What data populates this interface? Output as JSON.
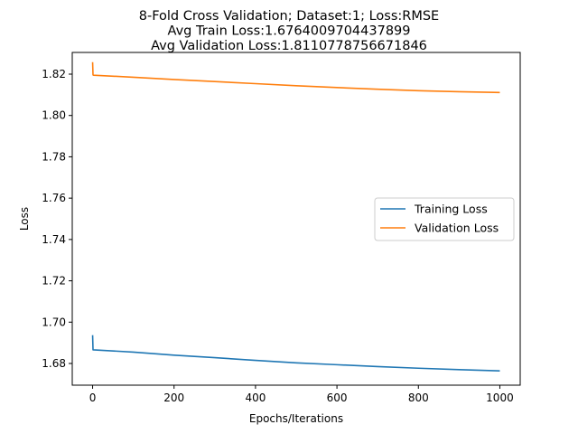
{
  "chart_data": {
    "type": "line",
    "title_lines": [
      "8-Fold Cross Validation; Dataset:1; Loss:RMSE",
      "Avg Train Loss:1.6764009704437899",
      "Avg Validation Loss:1.8110778756671846"
    ],
    "xlabel": "Epochs/Iterations",
    "ylabel": "Loss",
    "xlim": [
      -50,
      1050
    ],
    "ylim": [
      1.6695,
      1.8305
    ],
    "x_ticks": [
      0,
      200,
      400,
      600,
      800,
      1000
    ],
    "y_ticks": [
      1.68,
      1.7,
      1.72,
      1.74,
      1.76,
      1.78,
      1.8,
      1.82
    ],
    "x_tick_labels": [
      "0",
      "200",
      "400",
      "600",
      "800",
      "1000"
    ],
    "y_tick_labels": [
      "1.68",
      "1.70",
      "1.72",
      "1.74",
      "1.76",
      "1.78",
      "1.80",
      "1.82"
    ],
    "grid": false,
    "legend_position": "center-right",
    "series": [
      {
        "name": "Training Loss",
        "color": "#1f77b4",
        "x": [
          0,
          1,
          2,
          100,
          200,
          300,
          400,
          500,
          600,
          700,
          800,
          900,
          1000
        ],
        "y": [
          1.6937,
          1.6866,
          1.6866,
          1.6855,
          1.684,
          1.6828,
          1.6815,
          1.6803,
          1.6794,
          1.6785,
          1.6777,
          1.677,
          1.6764
        ]
      },
      {
        "name": "Validation Loss",
        "color": "#ff7f0e",
        "x": [
          0,
          1,
          2,
          100,
          200,
          300,
          400,
          500,
          600,
          700,
          800,
          900,
          1000
        ],
        "y": [
          1.8258,
          1.8196,
          1.8195,
          1.8185,
          1.8174,
          1.8164,
          1.8154,
          1.8144,
          1.8135,
          1.8127,
          1.812,
          1.8115,
          1.8111
        ]
      }
    ]
  }
}
